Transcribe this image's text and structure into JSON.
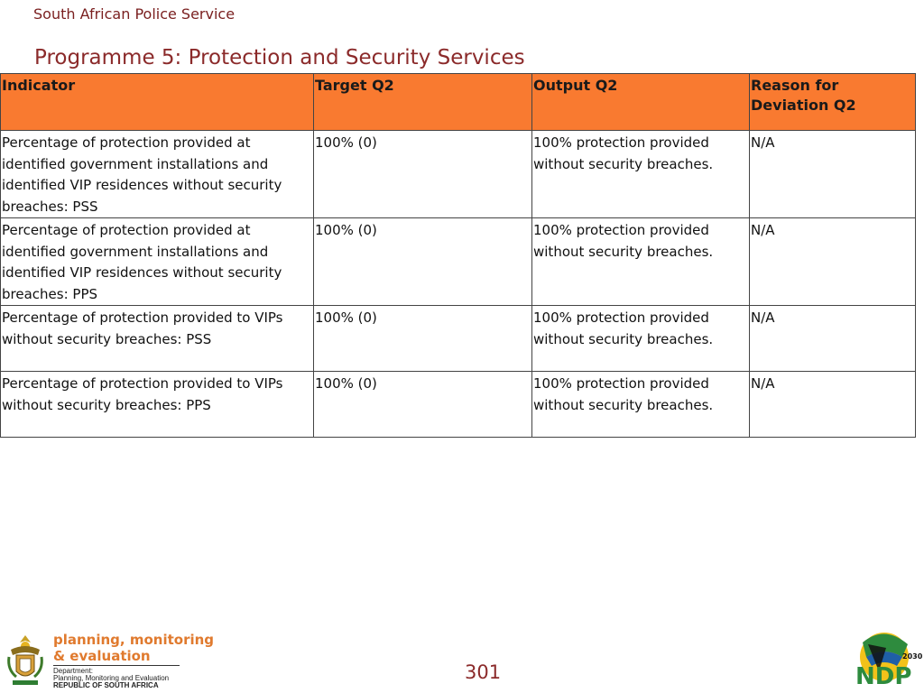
{
  "header": {
    "org_name": "South African Police Service",
    "title": "Programme 5: Protection and Security Services"
  },
  "table": {
    "headers": [
      "Indicator",
      "Target Q2",
      "Output Q2",
      "Reason for Deviation Q2"
    ],
    "rows": [
      [
        "Percentage of protection provided at identified government installations and identified VIP residences without security breaches: PSS",
        "100% (0)",
        "100% protection provided without security breaches.",
        "N/A"
      ],
      [
        "Percentage of protection provided at identified government installations and identified VIP residences without security breaches: PPS",
        "100% (0)",
        "100% protection provided without security breaches.",
        "N/A"
      ],
      [
        "Percentage of protection provided to VIPs without security breaches: PSS",
        "100% (0)",
        "100% protection provided without security breaches.",
        "N/A"
      ],
      [
        "Percentage of protection provided to VIPs without security breaches: PPS",
        "100% (0)",
        "100% protection provided without security breaches.",
        "N/A"
      ]
    ]
  },
  "footer": {
    "page_number": "301",
    "logo_line1": "planning, monitoring",
    "logo_line2": "& evaluation",
    "logo_dept": "Department:",
    "logo_dept_name": "Planning, Monitoring and Evaluation",
    "logo_country": "REPUBLIC OF SOUTH AFRICA",
    "ndp_text": "NDP",
    "ndp_year": "2030"
  },
  "colors": {
    "header_fill": "#f97a30",
    "title_color": "#8b2a2a",
    "ndp_green": "#2e8b3e",
    "ndp_yellow": "#f2c21a"
  }
}
